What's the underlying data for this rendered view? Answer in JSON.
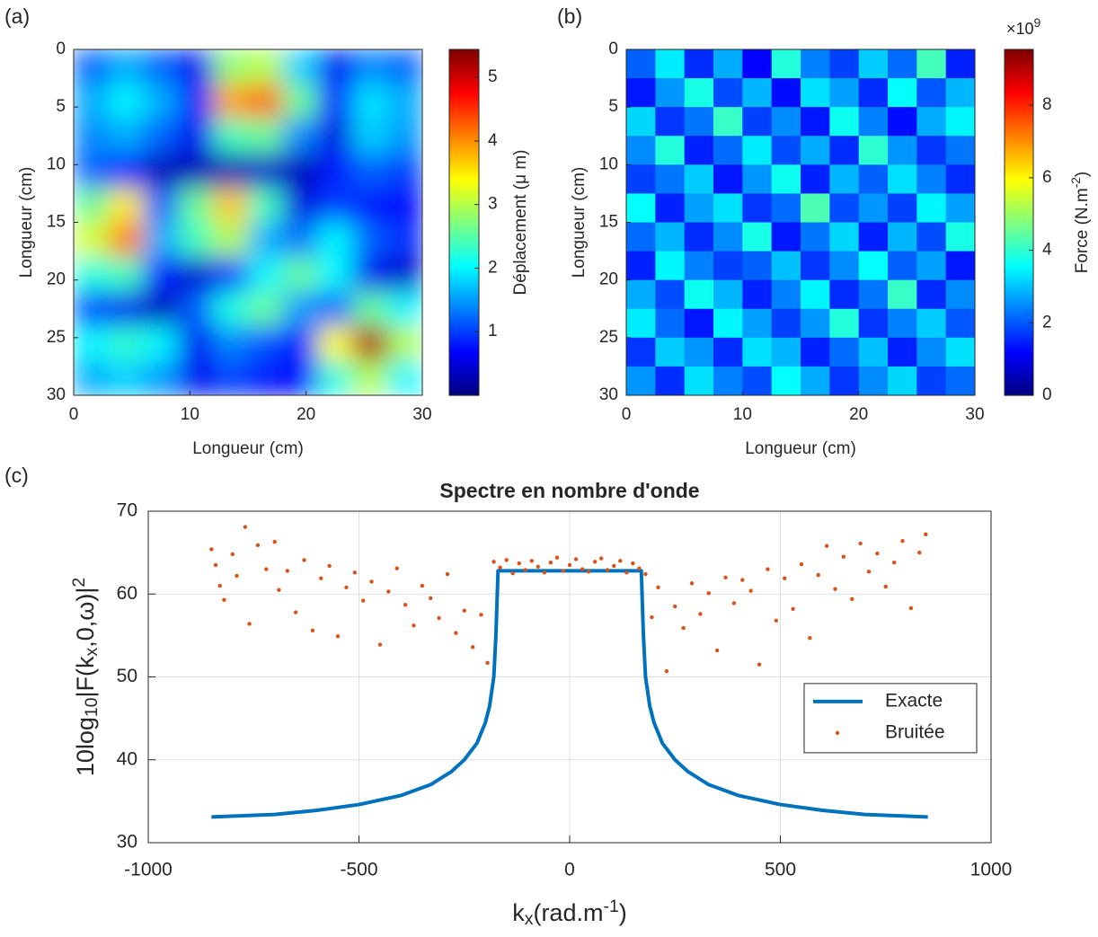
{
  "chart_data": [
    {
      "type": "heatmap",
      "panel_label": "(a)",
      "xlabel": "Longueur (cm)",
      "ylabel": "Longueur (cm)",
      "xlim": [
        0,
        30
      ],
      "ylim": [
        0,
        30
      ],
      "y_reversed": true,
      "xticks": [
        0,
        10,
        20,
        30
      ],
      "yticks": [
        0,
        5,
        10,
        15,
        20,
        25,
        30
      ],
      "colormap": "jet",
      "smooth": true,
      "clim": [
        0,
        5.44
      ],
      "cticks": [
        1,
        2,
        3,
        4,
        5
      ],
      "clabel": "Déplacement (μ m)",
      "values": [
        [
          1.2,
          1.6,
          1.2,
          0.6,
          2.8,
          3.0,
          1.8,
          0.6,
          1.4,
          1.2
        ],
        [
          1.6,
          2.0,
          1.6,
          0.8,
          3.9,
          4.2,
          2.6,
          0.8,
          1.9,
          1.6
        ],
        [
          1.4,
          1.6,
          1.2,
          0.6,
          2.4,
          2.6,
          1.4,
          0.5,
          1.8,
          1.5
        ],
        [
          1.2,
          0.8,
          0.3,
          0.3,
          0.3,
          0.4,
          0.3,
          0.8,
          1.2,
          1.0
        ],
        [
          2.6,
          3.5,
          1.2,
          2.6,
          3.7,
          2.4,
          0.5,
          1.0,
          0.8,
          0.7
        ],
        [
          3.2,
          4.1,
          1.6,
          2.4,
          3.0,
          1.6,
          1.3,
          2.0,
          1.2,
          0.9
        ],
        [
          2.2,
          2.4,
          0.8,
          0.4,
          0.9,
          2.0,
          2.6,
          2.0,
          0.6,
          0.4
        ],
        [
          1.0,
          0.6,
          0.3,
          1.2,
          2.2,
          2.6,
          1.5,
          1.2,
          2.6,
          2.0
        ],
        [
          2.0,
          2.3,
          2.0,
          0.6,
          1.4,
          1.1,
          0.8,
          3.4,
          5.2,
          3.0
        ],
        [
          1.6,
          1.8,
          1.5,
          0.6,
          1.0,
          0.8,
          0.7,
          2.2,
          3.0,
          2.0
        ]
      ]
    },
    {
      "type": "heatmap",
      "panel_label": "(b)",
      "xlabel": "Longueur (cm)",
      "ylabel": "Longueur (cm)",
      "xlim": [
        0,
        30
      ],
      "ylim": [
        0,
        30
      ],
      "y_reversed": true,
      "xticks": [
        0,
        10,
        20,
        30
      ],
      "yticks": [
        0,
        5,
        10,
        15,
        20,
        25,
        30
      ],
      "colormap": "jet",
      "smooth": false,
      "clim": [
        0,
        9.54
      ],
      "cticks": [
        0,
        2,
        4,
        6,
        8
      ],
      "exponent_prefix": "×10",
      "exponent": 9,
      "clabel": [
        "Force (N.m",
        {
          "sup": "-2"
        },
        ")"
      ],
      "values": [
        [
          2.1,
          3.4,
          1.6,
          2.8,
          1.2,
          3.9,
          2.4,
          1.8,
          3.1,
          2.2,
          4.2,
          1.5
        ],
        [
          1.4,
          2.6,
          3.8,
          1.9,
          2.9,
          1.3,
          3.3,
          2.7,
          1.6,
          3.6,
          2.0,
          2.9
        ],
        [
          3.2,
          1.7,
          2.3,
          4.1,
          1.8,
          2.5,
          1.4,
          3.7,
          2.4,
          1.3,
          2.8,
          3.5
        ],
        [
          2.5,
          3.9,
          1.5,
          2.2,
          3.4,
          1.9,
          2.8,
          1.6,
          4.0,
          2.6,
          1.7,
          2.3
        ],
        [
          1.8,
          2.3,
          3.1,
          1.4,
          2.6,
          3.7,
          1.5,
          2.9,
          2.1,
          3.3,
          2.4,
          1.6
        ],
        [
          3.6,
          1.5,
          2.7,
          3.3,
          1.7,
          2.2,
          4.3,
          1.9,
          2.6,
          1.8,
          3.5,
          2.7
        ],
        [
          2.2,
          2.9,
          1.6,
          2.5,
          3.8,
          1.4,
          2.3,
          3.2,
          1.5,
          2.9,
          1.9,
          3.8
        ],
        [
          1.5,
          3.5,
          2.4,
          1.8,
          2.1,
          3.0,
          1.7,
          2.5,
          3.6,
          2.1,
          2.7,
          1.4
        ],
        [
          2.8,
          1.9,
          3.7,
          2.9,
          1.5,
          2.4,
          3.5,
          1.6,
          2.3,
          4.1,
          1.6,
          2.5
        ],
        [
          3.4,
          2.2,
          1.4,
          3.5,
          2.7,
          1.8,
          2.6,
          3.9,
          1.7,
          2.4,
          3.1,
          2.0
        ],
        [
          1.7,
          3.1,
          2.6,
          1.6,
          3.3,
          2.9,
          1.5,
          2.2,
          3.0,
          1.5,
          2.5,
          3.3
        ],
        [
          2.6,
          1.6,
          3.3,
          2.4,
          1.9,
          3.6,
          2.8,
          1.7,
          2.5,
          3.2,
          1.8,
          2.2
        ]
      ]
    },
    {
      "type": "line",
      "panel_label": "(c)",
      "title": "Spectre en nombre d'onde",
      "xlabel": [
        "k",
        {
          "sub": "x"
        },
        "(rad.m",
        {
          "sup": "-1"
        },
        ")"
      ],
      "ylabel": [
        "10log",
        {
          "sub": "10"
        },
        "|F(k",
        {
          "sub": "x"
        },
        ",0,ω)|",
        {
          "sup": "2"
        }
      ],
      "xlim": [
        -1000,
        1000
      ],
      "ylim": [
        30,
        70
      ],
      "xticks": [
        -1000,
        -500,
        0,
        500,
        1000
      ],
      "yticks": [
        30,
        40,
        50,
        60,
        70
      ],
      "grid": true,
      "legend": "east",
      "series": [
        {
          "name": "Exacte",
          "color": "#0072bd",
          "type": "line",
          "x": [
            -850,
            -700,
            -600,
            -500,
            -400,
            -330,
            -280,
            -250,
            -220,
            -200,
            -190,
            -180,
            -175,
            -170,
            170,
            175,
            180,
            190,
            200,
            220,
            250,
            280,
            330,
            400,
            500,
            600,
            700,
            850
          ],
          "values": [
            33.1,
            33.4,
            33.9,
            34.6,
            35.7,
            37,
            38.6,
            40,
            42,
            44.5,
            46.5,
            50,
            55,
            62.8,
            62.8,
            55,
            50,
            46.5,
            44.5,
            42,
            40,
            38.6,
            37,
            35.7,
            34.6,
            33.9,
            33.4,
            33.1
          ]
        },
        {
          "name": "Bruitée",
          "color": "#d95319",
          "type": "scatter",
          "x": [
            -850,
            -840,
            -830,
            -820,
            -800,
            -790,
            -770,
            -760,
            -740,
            -720,
            -700,
            -690,
            -670,
            -650,
            -630,
            -610,
            -590,
            -570,
            -550,
            -530,
            -510,
            -490,
            -470,
            -450,
            -430,
            -410,
            -390,
            -370,
            -350,
            -330,
            -310,
            -290,
            -270,
            -250,
            -230,
            -210,
            -195,
            -180,
            -165,
            -150,
            -135,
            -120,
            -105,
            -90,
            -75,
            -60,
            -45,
            -30,
            -15,
            0,
            15,
            30,
            45,
            60,
            75,
            90,
            105,
            120,
            135,
            150,
            165,
            180,
            195,
            210,
            230,
            250,
            270,
            290,
            310,
            330,
            350,
            370,
            390,
            410,
            430,
            450,
            470,
            490,
            510,
            530,
            550,
            570,
            590,
            610,
            630,
            650,
            670,
            690,
            710,
            730,
            750,
            770,
            790,
            810,
            830,
            845
          ],
          "values": [
            65.4,
            63.5,
            61.0,
            59.3,
            64.8,
            62.2,
            68.1,
            56.4,
            65.9,
            63.0,
            66.3,
            60.5,
            62.8,
            57.8,
            64.1,
            55.6,
            61.9,
            63.4,
            54.9,
            60.8,
            62.6,
            59.2,
            61.5,
            53.9,
            60.3,
            63.1,
            58.7,
            56.2,
            61.0,
            59.5,
            57.1,
            62.4,
            55.3,
            58.0,
            53.6,
            57.5,
            51.7,
            63.9,
            63.2,
            64.1,
            62.5,
            63.7,
            62.9,
            64.0,
            63.3,
            62.6,
            63.8,
            64.4,
            62.8,
            63.5,
            64.2,
            63.0,
            62.7,
            63.9,
            64.3,
            62.9,
            63.4,
            64.0,
            62.6,
            63.7,
            63.1,
            62.4,
            57.2,
            60.8,
            50.7,
            58.5,
            55.9,
            61.3,
            57.6,
            60.1,
            53.2,
            62.0,
            58.9,
            61.7,
            60.4,
            51.5,
            63.0,
            56.8,
            61.9,
            58.2,
            63.6,
            54.7,
            62.3,
            65.8,
            60.6,
            64.5,
            59.4,
            66.1,
            62.7,
            64.9,
            60.9,
            63.8,
            66.4,
            58.3,
            65.0,
            67.2
          ]
        }
      ]
    }
  ]
}
